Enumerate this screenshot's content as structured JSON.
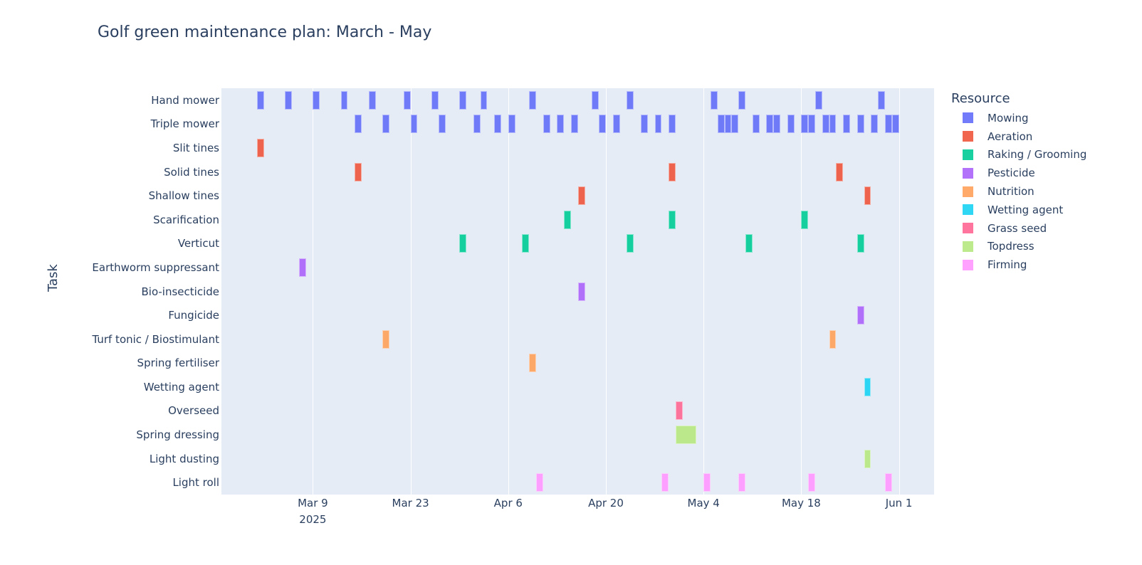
{
  "chart_data": {
    "type": "gantt",
    "title": "Golf green maintenance plan: March - May",
    "xlabel": "",
    "ylabel": "Task",
    "x_ticks": [
      "Mar 9",
      "Mar 23",
      "Apr 6",
      "Apr 20",
      "May 4",
      "May 18",
      "Jun 1"
    ],
    "x_tick_dates": [
      "2025-03-09",
      "2025-03-23",
      "2025-04-06",
      "2025-04-20",
      "2025-05-04",
      "2025-05-18",
      "2025-06-01"
    ],
    "x_year_label": "2025",
    "x_range": [
      "2025-02-24",
      "2025-06-06"
    ],
    "legend_title": "Resource",
    "legend_position": "right",
    "resources": [
      {
        "name": "Mowing",
        "color": "#636efa"
      },
      {
        "name": "Aeration",
        "color": "#ef553b"
      },
      {
        "name": "Raking / Grooming",
        "color": "#00cc96"
      },
      {
        "name": "Pesticide",
        "color": "#ab63fa"
      },
      {
        "name": "Nutrition",
        "color": "#ffa15a"
      },
      {
        "name": "Wetting agent",
        "color": "#19d3f3"
      },
      {
        "name": "Grass seed",
        "color": "#ff6692"
      },
      {
        "name": "Topdress",
        "color": "#b6e880"
      },
      {
        "name": "Firming",
        "color": "#ff97ff"
      }
    ],
    "tasks": [
      {
        "task": "Hand mower",
        "resource": "Mowing",
        "dates": [
          "2025-03-01",
          "2025-03-05",
          "2025-03-09",
          "2025-03-13",
          "2025-03-17",
          "2025-03-22",
          "2025-03-26",
          "2025-03-30",
          "2025-04-02",
          "2025-04-09",
          "2025-04-18",
          "2025-04-23",
          "2025-05-05",
          "2025-05-09",
          "2025-05-20",
          "2025-05-29"
        ],
        "duration_days": 1
      },
      {
        "task": "Triple mower",
        "resource": "Mowing",
        "dates": [
          "2025-03-15",
          "2025-03-19",
          "2025-03-23",
          "2025-03-27",
          "2025-04-01",
          "2025-04-04",
          "2025-04-06",
          "2025-04-11",
          "2025-04-13",
          "2025-04-15",
          "2025-04-19",
          "2025-04-21",
          "2025-04-25",
          "2025-04-27",
          "2025-04-29",
          "2025-05-06",
          "2025-05-07",
          "2025-05-08",
          "2025-05-11",
          "2025-05-13",
          "2025-05-14",
          "2025-05-16",
          "2025-05-18",
          "2025-05-19",
          "2025-05-21",
          "2025-05-22",
          "2025-05-24",
          "2025-05-26",
          "2025-05-28",
          "2025-05-30",
          "2025-05-31"
        ],
        "duration_days": 1
      },
      {
        "task": "Slit tines",
        "resource": "Aeration",
        "dates": [
          "2025-03-01"
        ],
        "duration_days": 1
      },
      {
        "task": "Solid tines",
        "resource": "Aeration",
        "dates": [
          "2025-03-15",
          "2025-04-29",
          "2025-05-23"
        ],
        "duration_days": 1
      },
      {
        "task": "Shallow tines",
        "resource": "Aeration",
        "dates": [
          "2025-04-16",
          "2025-05-27"
        ],
        "duration_days": 1
      },
      {
        "task": "Scarification",
        "resource": "Raking / Grooming",
        "dates": [
          "2025-04-14",
          "2025-04-29",
          "2025-05-18"
        ],
        "duration_days": 1
      },
      {
        "task": "Verticut",
        "resource": "Raking / Grooming",
        "dates": [
          "2025-03-30",
          "2025-04-08",
          "2025-04-23",
          "2025-05-10",
          "2025-05-26"
        ],
        "duration_days": 1
      },
      {
        "task": "Earthworm suppressant",
        "resource": "Pesticide",
        "dates": [
          "2025-03-07"
        ],
        "duration_days": 1
      },
      {
        "task": "Bio-insecticide",
        "resource": "Pesticide",
        "dates": [
          "2025-04-16"
        ],
        "duration_days": 1
      },
      {
        "task": "Fungicide",
        "resource": "Pesticide",
        "dates": [
          "2025-05-26"
        ],
        "duration_days": 1
      },
      {
        "task": "Turf tonic / Biostimulant",
        "resource": "Nutrition",
        "dates": [
          "2025-03-19",
          "2025-05-22"
        ],
        "duration_days": 1
      },
      {
        "task": "Spring fertiliser",
        "resource": "Nutrition",
        "dates": [
          "2025-04-09"
        ],
        "duration_days": 1
      },
      {
        "task": "Wetting agent",
        "resource": "Wetting agent",
        "dates": [
          "2025-05-27"
        ],
        "duration_days": 1
      },
      {
        "task": "Overseed",
        "resource": "Grass seed",
        "dates": [
          "2025-04-30"
        ],
        "duration_days": 1
      },
      {
        "task": "Spring dressing",
        "resource": "Topdress",
        "dates": [
          "2025-04-30"
        ],
        "duration_days": 3
      },
      {
        "task": "Light dusting",
        "resource": "Topdress",
        "dates": [
          "2025-05-27"
        ],
        "duration_days": 1
      },
      {
        "task": "Light roll",
        "resource": "Firming",
        "dates": [
          "2025-04-10",
          "2025-04-28",
          "2025-05-04",
          "2025-05-09",
          "2025-05-19",
          "2025-05-30"
        ],
        "duration_days": 1
      }
    ]
  }
}
